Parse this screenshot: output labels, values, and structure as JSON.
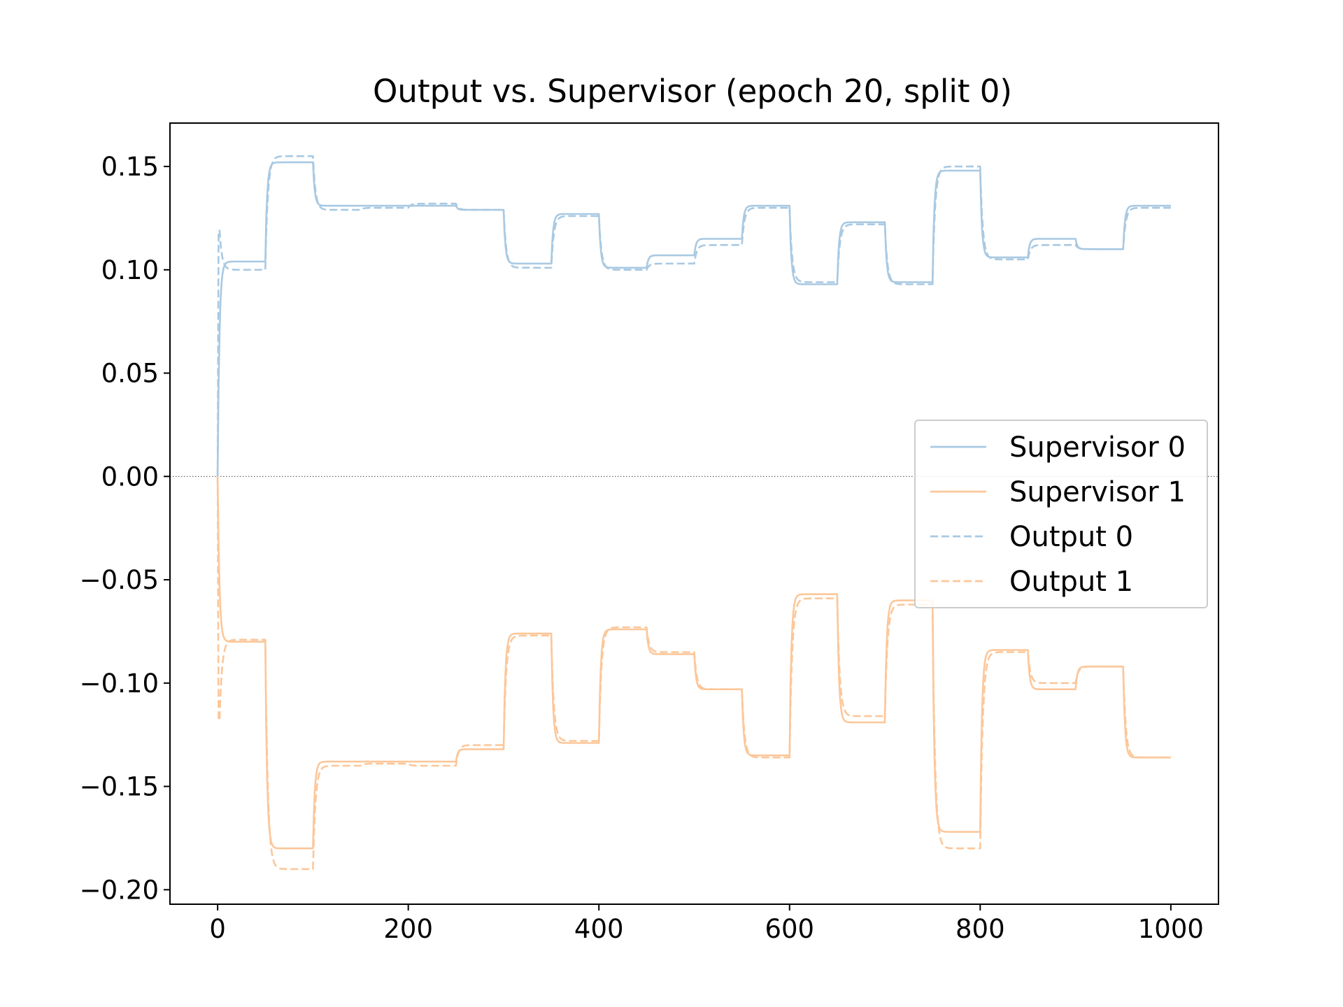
{
  "chart_data": {
    "type": "line",
    "title": "Output vs. Supervisor (epoch 20, split 0)",
    "xlabel": "",
    "ylabel": "",
    "xlim": [
      -50,
      1050
    ],
    "ylim": [
      -0.207,
      0.171
    ],
    "xticks": [
      0,
      200,
      400,
      600,
      800,
      1000
    ],
    "xtick_labels": [
      "0",
      "200",
      "400",
      "600",
      "800",
      "1000"
    ],
    "yticks": [
      0.15,
      0.1,
      0.05,
      0.0,
      -0.05,
      -0.1,
      -0.15,
      -0.2
    ],
    "ytick_labels": [
      "0.15",
      "0.10",
      "0.05",
      "0.00",
      "−0.05",
      "−0.10",
      "−0.15",
      "−0.20"
    ],
    "grid": false,
    "zero_line": true,
    "legend_position": "center-right",
    "segment_length": 50,
    "series": [
      {
        "name": "Supervisor 0",
        "color": "#a9c9e2",
        "style": "solid",
        "step_levels": [
          0.104,
          0.152,
          0.131,
          0.131,
          0.131,
          0.129,
          0.103,
          0.127,
          0.101,
          0.107,
          0.115,
          0.131,
          0.093,
          0.123,
          0.094,
          0.148,
          0.106,
          0.115,
          0.11,
          0.131,
          0.136
        ]
      },
      {
        "name": "Supervisor 1",
        "color": "#fcc79a",
        "style": "solid",
        "step_levels": [
          -0.08,
          -0.18,
          -0.138,
          -0.138,
          -0.138,
          -0.132,
          -0.076,
          -0.129,
          -0.074,
          -0.086,
          -0.103,
          -0.135,
          -0.057,
          -0.119,
          -0.06,
          -0.172,
          -0.084,
          -0.103,
          -0.092,
          -0.136,
          -0.147
        ]
      },
      {
        "name": "Output 0",
        "color": "#a9c9e2",
        "style": "dashed",
        "step_levels": [
          0.1,
          0.155,
          0.129,
          0.13,
          0.132,
          0.129,
          0.101,
          0.126,
          0.1,
          0.103,
          0.112,
          0.13,
          0.094,
          0.122,
          0.093,
          0.15,
          0.105,
          0.112,
          0.11,
          0.13,
          0.136
        ],
        "start_spike": 0.119
      },
      {
        "name": "Output 1",
        "color": "#fcc79a",
        "style": "dashed",
        "step_levels": [
          -0.079,
          -0.19,
          -0.14,
          -0.139,
          -0.14,
          -0.13,
          -0.077,
          -0.128,
          -0.073,
          -0.085,
          -0.103,
          -0.136,
          -0.059,
          -0.116,
          -0.062,
          -0.18,
          -0.085,
          -0.1,
          -0.092,
          -0.136,
          -0.15
        ],
        "start_spike": -0.118
      }
    ]
  }
}
